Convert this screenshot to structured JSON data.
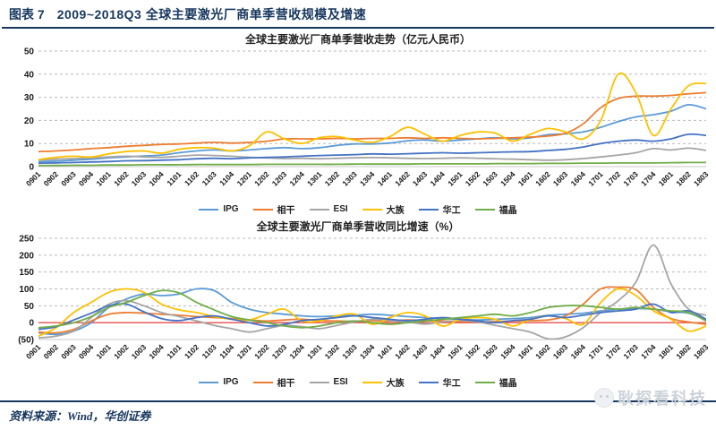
{
  "header": {
    "fig_label": "图表 7",
    "title": "2009~2018Q3 全球主要激光厂商单季营收规模及增速"
  },
  "footer": {
    "source": "资料来源：Wind，华创证券"
  },
  "watermark": {
    "text": "耿探看科技"
  },
  "chart_data": [
    {
      "type": "line",
      "title": "全球主要激光厂商单季营收走势（亿元人民币）",
      "xlabel": "",
      "ylabel": "",
      "ylim": [
        0,
        50
      ],
      "ytick_step": 10,
      "ytick_labels": [
        "0",
        "10",
        "20",
        "30",
        "40",
        "50"
      ],
      "grid": "dashed-horizontal",
      "legend_position": "bottom",
      "categories": [
        "0901",
        "0902",
        "0903",
        "0904",
        "1001",
        "1002",
        "1003",
        "1004",
        "1101",
        "1102",
        "1103",
        "1104",
        "1201",
        "1202",
        "1203",
        "1204",
        "1301",
        "1302",
        "1303",
        "1304",
        "1401",
        "1402",
        "1403",
        "1404",
        "1501",
        "1502",
        "1503",
        "1504",
        "1601",
        "1602",
        "1603",
        "1604",
        "1701",
        "1702",
        "1703",
        "1704",
        "1801",
        "1802",
        "1803"
      ],
      "series": [
        {
          "name": "IPG",
          "color": "#5B9BD5",
          "values": [
            2.2,
            2.4,
            2.8,
            3.2,
            3.8,
            4.2,
            4.6,
            5.0,
            6.0,
            6.8,
            7.2,
            6.8,
            7.2,
            7.8,
            8.2,
            7.8,
            8.2,
            9.2,
            9.8,
            9.8,
            10.2,
            11.2,
            11.5,
            11.0,
            11.5,
            12.0,
            12.5,
            12.0,
            12.5,
            13.8,
            14.2,
            15.0,
            17.0,
            19.5,
            21.5,
            22.5,
            24.0,
            26.8,
            25.0
          ]
        },
        {
          "name": "相干",
          "color": "#ED7D31",
          "values": [
            6.5,
            6.8,
            7.2,
            7.8,
            8.2,
            8.8,
            9.2,
            9.6,
            9.8,
            10.2,
            10.5,
            10.2,
            10.5,
            11.0,
            12.0,
            12.0,
            12.0,
            12.2,
            12.0,
            12.2,
            12.2,
            12.5,
            12.2,
            12.5,
            12.2,
            12.0,
            12.2,
            12.5,
            12.8,
            13.2,
            14.5,
            18.5,
            25.5,
            29.5,
            30.5,
            30.5,
            30.8,
            31.5,
            32.0
          ]
        },
        {
          "name": "ESI",
          "color": "#A5A5A5",
          "values": [
            3.0,
            3.2,
            3.5,
            3.8,
            4.2,
            4.5,
            4.2,
            4.0,
            4.5,
            5.0,
            4.8,
            4.5,
            4.0,
            3.8,
            3.5,
            3.6,
            3.4,
            3.6,
            3.8,
            3.9,
            3.8,
            3.6,
            3.5,
            3.6,
            3.8,
            3.6,
            3.4,
            3.2,
            3.0,
            2.8,
            3.0,
            3.5,
            4.2,
            5.0,
            6.0,
            7.8,
            7.2,
            8.0,
            7.0
          ]
        },
        {
          "name": "大族",
          "color": "#FFC000",
          "values": [
            3.0,
            4.0,
            4.5,
            4.2,
            5.5,
            6.5,
            6.8,
            5.8,
            7.5,
            8.2,
            8.0,
            6.8,
            9.0,
            15.0,
            12.0,
            10.0,
            12.5,
            13.0,
            11.5,
            10.5,
            13.0,
            17.0,
            14.0,
            11.0,
            13.5,
            15.0,
            14.5,
            11.0,
            14.0,
            16.5,
            15.0,
            12.0,
            20.0,
            40.0,
            32.0,
            13.5,
            25.0,
            35.0,
            36.0
          ]
        },
        {
          "name": "华工",
          "color": "#4472C4",
          "values": [
            1.5,
            1.6,
            1.8,
            2.0,
            2.2,
            2.5,
            2.6,
            2.8,
            3.0,
            3.4,
            3.6,
            3.4,
            3.8,
            4.0,
            4.2,
            4.5,
            4.8,
            5.0,
            5.2,
            5.5,
            5.4,
            5.6,
            5.8,
            6.0,
            5.8,
            6.0,
            6.2,
            6.4,
            6.5,
            7.0,
            7.5,
            8.5,
            10.0,
            11.0,
            11.5,
            11.0,
            12.0,
            14.0,
            13.5
          ]
        },
        {
          "name": "福晶",
          "color": "#70AD47",
          "values": [
            0.5,
            0.5,
            0.6,
            0.6,
            0.7,
            0.7,
            0.8,
            0.8,
            0.8,
            0.9,
            0.9,
            0.9,
            0.9,
            1.0,
            1.0,
            1.0,
            1.0,
            1.0,
            1.1,
            1.1,
            1.1,
            1.1,
            1.2,
            1.2,
            1.2,
            1.2,
            1.3,
            1.3,
            1.3,
            1.4,
            1.4,
            1.5,
            1.5,
            1.6,
            1.6,
            1.6,
            1.7,
            1.8,
            1.8
          ]
        }
      ]
    },
    {
      "type": "line",
      "title": "全球主要激光厂商单季营收同比增速（%）",
      "xlabel": "",
      "ylabel": "",
      "ylim": [
        -50,
        250
      ],
      "ytick_step": 50,
      "ytick_labels": [
        "(50)",
        "0",
        "50",
        "100",
        "150",
        "200",
        "250"
      ],
      "negative_tick_color": "#FF0000",
      "zero_line_color": "#E84C4C",
      "grid": "dashed-horizontal",
      "legend_position": "bottom",
      "categories": [
        "0901",
        "0902",
        "0903",
        "0904",
        "1001",
        "1002",
        "1003",
        "1004",
        "1101",
        "1102",
        "1103",
        "1104",
        "1201",
        "1202",
        "1203",
        "1204",
        "1301",
        "1302",
        "1303",
        "1304",
        "1401",
        "1402",
        "1403",
        "1404",
        "1501",
        "1502",
        "1503",
        "1504",
        "1601",
        "1602",
        "1603",
        "1604",
        "1701",
        "1702",
        "1703",
        "1704",
        "1801",
        "1802",
        "1803"
      ],
      "series": [
        {
          "name": "IPG",
          "color": "#5B9BD5",
          "values": [
            -30,
            -35,
            -25,
            0,
            45,
            70,
            85,
            80,
            85,
            100,
            95,
            60,
            40,
            30,
            25,
            20,
            18,
            20,
            22,
            25,
            22,
            18,
            15,
            12,
            10,
            8,
            10,
            12,
            15,
            22,
            25,
            28,
            35,
            40,
            42,
            40,
            32,
            28,
            8
          ]
        },
        {
          "name": "相干",
          "color": "#ED7D31",
          "values": [
            -28,
            -30,
            -20,
            5,
            25,
            30,
            28,
            25,
            22,
            18,
            15,
            12,
            8,
            5,
            8,
            10,
            6,
            5,
            4,
            6,
            5,
            8,
            6,
            5,
            4,
            2,
            3,
            5,
            6,
            8,
            20,
            55,
            100,
            105,
            98,
            45,
            12,
            2,
            -5
          ]
        },
        {
          "name": "ESI",
          "color": "#A5A5A5",
          "values": [
            -45,
            -40,
            -25,
            15,
            55,
            65,
            50,
            30,
            18,
            5,
            -8,
            -18,
            -28,
            -18,
            -8,
            -12,
            -18,
            -8,
            2,
            10,
            6,
            2,
            -4,
            2,
            6,
            2,
            -8,
            -18,
            -28,
            -48,
            -42,
            -15,
            30,
            65,
            120,
            230,
            115,
            40,
            22
          ]
        },
        {
          "name": "大族",
          "color": "#FFC000",
          "values": [
            -40,
            -15,
            30,
            60,
            90,
            100,
            90,
            55,
            38,
            30,
            18,
            10,
            8,
            25,
            40,
            5,
            5,
            20,
            25,
            -5,
            15,
            30,
            20,
            -10,
            10,
            15,
            10,
            -10,
            10,
            20,
            12,
            -5,
            60,
            100,
            80,
            35,
            10,
            -25,
            -10
          ]
        },
        {
          "name": "华工",
          "color": "#4472C4",
          "values": [
            -20,
            -12,
            8,
            28,
            50,
            55,
            32,
            12,
            6,
            15,
            20,
            10,
            0,
            -10,
            -5,
            6,
            10,
            15,
            20,
            15,
            10,
            6,
            10,
            15,
            10,
            5,
            0,
            6,
            10,
            20,
            15,
            22,
            30,
            35,
            40,
            55,
            30,
            35,
            10
          ]
        },
        {
          "name": "福晶",
          "color": "#70AD47",
          "values": [
            -15,
            -10,
            0,
            18,
            45,
            60,
            80,
            95,
            88,
            60,
            38,
            18,
            8,
            0,
            -10,
            -15,
            -10,
            0,
            5,
            0,
            -5,
            0,
            5,
            10,
            15,
            20,
            25,
            20,
            30,
            45,
            50,
            50,
            45,
            40,
            45,
            40,
            35,
            30,
            5
          ]
        }
      ]
    }
  ]
}
